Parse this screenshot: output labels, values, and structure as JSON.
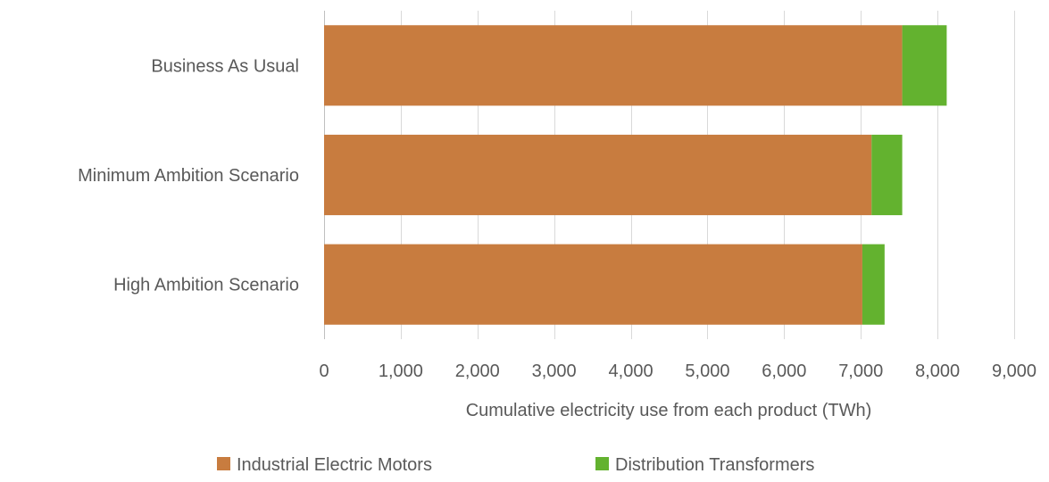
{
  "chart_data": {
    "type": "bar",
    "orientation": "horizontal",
    "stacked": true,
    "title": "",
    "xlabel": "Cumulative electricity use from each product (TWh)",
    "ylabel": "",
    "categories": [
      "Business As Usual",
      "Minimum Ambition Scenario",
      "High Ambition Scenario"
    ],
    "series": [
      {
        "name": "Industrial Electric Motors",
        "color": "#c87c3f",
        "values": [
          7540,
          7140,
          7020
        ]
      },
      {
        "name": "Distribution Transformers",
        "color": "#63b22f",
        "values": [
          580,
          400,
          290
        ]
      }
    ],
    "xlim": [
      0,
      9000
    ],
    "xticks": [
      0,
      1000,
      2000,
      3000,
      4000,
      5000,
      6000,
      7000,
      8000,
      9000
    ],
    "xtick_labels": [
      "0",
      "1,000",
      "2,000",
      "3,000",
      "4,000",
      "5,000",
      "6,000",
      "7,000",
      "8,000",
      "9,000"
    ],
    "grid": true,
    "legend_position": "bottom"
  }
}
